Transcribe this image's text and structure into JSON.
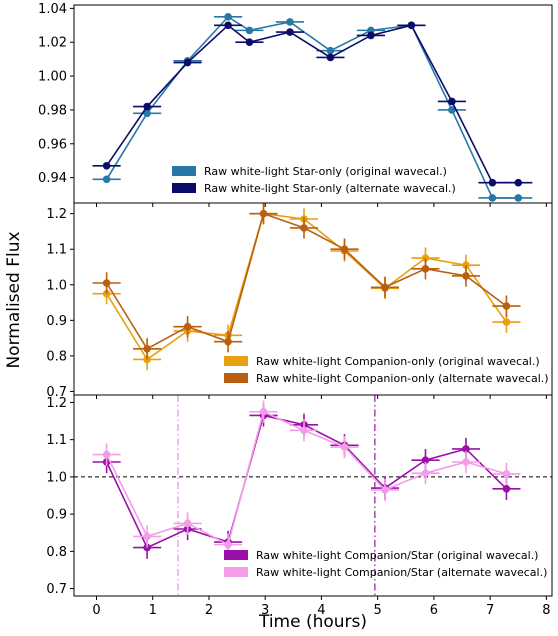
{
  "chart_data": {
    "type": "scatter",
    "xlabel": "Time (hours)",
    "ylabel": "Normalised Flux",
    "xlim": [
      -0.4,
      8.1
    ],
    "xticks": [
      0,
      1,
      2,
      3,
      4,
      5,
      6,
      7,
      8
    ],
    "panels": [
      {
        "ylim": [
          0.925,
          1.042
        ],
        "yticks": [
          0.94,
          0.96,
          0.98,
          1.0,
          1.02,
          1.04
        ],
        "ytick_labels": [
          "0.94",
          "0.96",
          "0.98",
          "1.00",
          "1.02",
          "1.04"
        ],
        "legend_position": "lower-center",
        "series": [
          {
            "name": "Raw white-light Star-only (original wavecal.)",
            "color": "#2878a6",
            "x": [
              0.18,
              0.9,
              1.62,
              2.34,
              2.72,
              3.44,
              4.16,
              4.88,
              5.6,
              6.32,
              7.04,
              7.5
            ],
            "y": [
              0.939,
              0.978,
              1.009,
              1.035,
              1.027,
              1.032,
              1.015,
              1.027,
              1.03,
              0.98,
              0.928,
              0.928
            ],
            "xerr": 0.25,
            "yerr": 0.001
          },
          {
            "name": "Raw white-light Star-only (alternate wavecal.)",
            "color": "#0b0b6b",
            "x": [
              0.18,
              0.9,
              1.62,
              2.34,
              2.72,
              3.44,
              4.16,
              4.88,
              5.6,
              6.32,
              7.04,
              7.5
            ],
            "y": [
              0.947,
              0.982,
              1.008,
              1.03,
              1.02,
              1.026,
              1.011,
              1.024,
              1.03,
              0.985,
              0.937,
              0.937
            ],
            "xerr": 0.25,
            "yerr": 0.001
          }
        ]
      },
      {
        "ylim": [
          0.69,
          1.23
        ],
        "yticks": [
          0.7,
          0.8,
          0.9,
          1.0,
          1.1,
          1.2
        ],
        "ytick_labels": [
          "0.7",
          "0.8",
          "0.9",
          "1.0",
          "1.1",
          "1.2"
        ],
        "legend_position": "lower-right",
        "series": [
          {
            "name": "Raw white-light Companion-only (original wavecal.)",
            "color": "#e8a010",
            "x": [
              0.18,
              0.9,
              1.62,
              2.34,
              2.97,
              3.69,
              4.41,
              5.13,
              5.85,
              6.57,
              7.29
            ],
            "y": [
              0.975,
              0.79,
              0.87,
              0.858,
              1.2,
              1.185,
              1.095,
              0.99,
              1.075,
              1.055,
              0.895
            ],
            "xerr": 0.25,
            "yerr": 0.03
          },
          {
            "name": "Raw white-light Companion-only (alternate wavecal.)",
            "color": "#b8600f",
            "x": [
              0.18,
              0.9,
              1.62,
              2.34,
              2.97,
              3.69,
              4.41,
              5.13,
              5.85,
              6.57,
              7.29
            ],
            "y": [
              1.005,
              0.82,
              0.882,
              0.84,
              1.2,
              1.16,
              1.1,
              0.993,
              1.045,
              1.025,
              0.94
            ],
            "xerr": 0.25,
            "yerr": 0.03
          }
        ]
      },
      {
        "ylim": [
          0.68,
          1.22
        ],
        "yticks": [
          0.7,
          0.8,
          0.9,
          1.0,
          1.1,
          1.2
        ],
        "ytick_labels": [
          "0.7",
          "0.8",
          "0.9",
          "1.0",
          "1.1",
          "1.2"
        ],
        "legend_position": "lower-right",
        "hline": 1.0,
        "vlines": [
          {
            "x": 1.45,
            "color": "#ee88e8"
          },
          {
            "x": 4.95,
            "color": "#9b10a8"
          }
        ],
        "series": [
          {
            "name": "Raw white-light Companion/Star (original wavecal.)",
            "color": "#9b10a8",
            "x": [
              0.18,
              0.9,
              1.62,
              2.34,
              2.97,
              3.69,
              4.41,
              5.13,
              5.85,
              6.57,
              7.29
            ],
            "y": [
              1.04,
              0.81,
              0.86,
              0.825,
              1.165,
              1.14,
              1.085,
              0.97,
              1.045,
              1.075,
              0.968
            ],
            "xerr": 0.25,
            "yerr": 0.03
          },
          {
            "name": "Raw white-light Companion/Star (alternate wavecal.)",
            "color": "#f49ce8",
            "x": [
              0.18,
              0.9,
              1.62,
              2.34,
              2.97,
              3.69,
              4.41,
              5.13,
              5.85,
              6.57,
              7.29
            ],
            "y": [
              1.06,
              0.84,
              0.875,
              0.818,
              1.175,
              1.125,
              1.08,
              0.965,
              1.01,
              1.04,
              1.008
            ],
            "xerr": 0.25,
            "yerr": 0.03
          }
        ]
      }
    ]
  }
}
